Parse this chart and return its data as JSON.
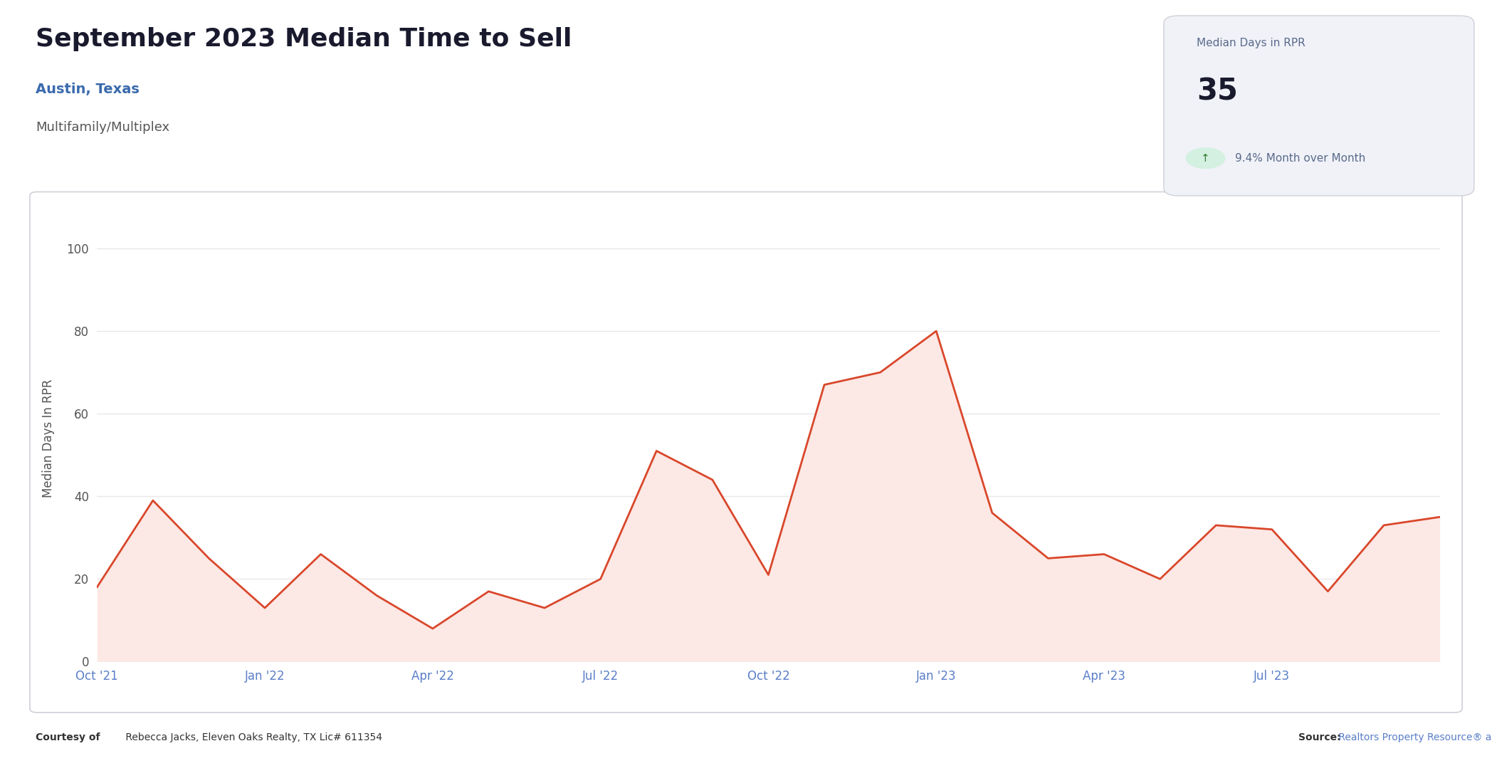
{
  "title": "September 2023 Median Time to Sell",
  "subtitle": "Austin, Texas",
  "property_type": "Multifamily/Multiplex",
  "ylabel": "Median Days In RPR",
  "stat_label": "Median Days in RPR",
  "stat_value": "35",
  "courtesy_bold": "Courtesy of",
  "courtesy_rest": " Rebecca Jacks, Eleven Oaks Realty, TX Lic# 611354",
  "source_bold": "Source:",
  "source_rest": " Realtors Property Resource® analysis based on Listings",
  "x_labels": [
    "Oct '21",
    "Jan '22",
    "Apr '22",
    "Jul '22",
    "Oct '22",
    "Jan '23",
    "Apr '23",
    "Jul '23"
  ],
  "x_tick_pos": [
    0,
    3,
    6,
    9,
    12,
    15,
    18,
    21
  ],
  "y_data_x": [
    0,
    1,
    2,
    3,
    4,
    5,
    6,
    7,
    8,
    9,
    10,
    11,
    12,
    13,
    14,
    15,
    16,
    17,
    18,
    19,
    20,
    21,
    22,
    23,
    24
  ],
  "y_data": [
    18,
    39,
    25,
    13,
    26,
    16,
    8,
    17,
    13,
    20,
    51,
    44,
    21,
    67,
    70,
    80,
    36,
    25,
    26,
    20,
    33,
    32,
    17,
    33,
    35
  ],
  "line_color": "#d9472b",
  "fill_color": "#fce8e4",
  "fill_alpha": 1.0,
  "bg_color": "#ffffff",
  "plot_bg_color": "#ffffff",
  "grid_color": "#e8e8e8",
  "ylim": [
    0,
    108
  ],
  "yticks": [
    0,
    20,
    40,
    60,
    80,
    100
  ],
  "title_fontsize": 26,
  "subtitle_fontsize": 14,
  "property_type_fontsize": 13,
  "ylabel_fontsize": 12,
  "tick_fontsize": 12,
  "stat_box_color": "#f0f2f8",
  "stat_label_color": "#5a6a8a",
  "stat_value_color": "#1a1a2e",
  "stat_change_color": "#2e7d32",
  "arrow_circle_color": "#d4f0e0",
  "courtesy_fontsize": 10,
  "source_fontsize": 10,
  "title_color": "#1a1a2e",
  "subtitle_color": "#3a6aad",
  "property_color": "#555555",
  "xlabel_color": "#5a7ec8",
  "ytick_color": "#555555",
  "border_color": "#d0d0d8",
  "stat_border_color": "#d0d0d8"
}
